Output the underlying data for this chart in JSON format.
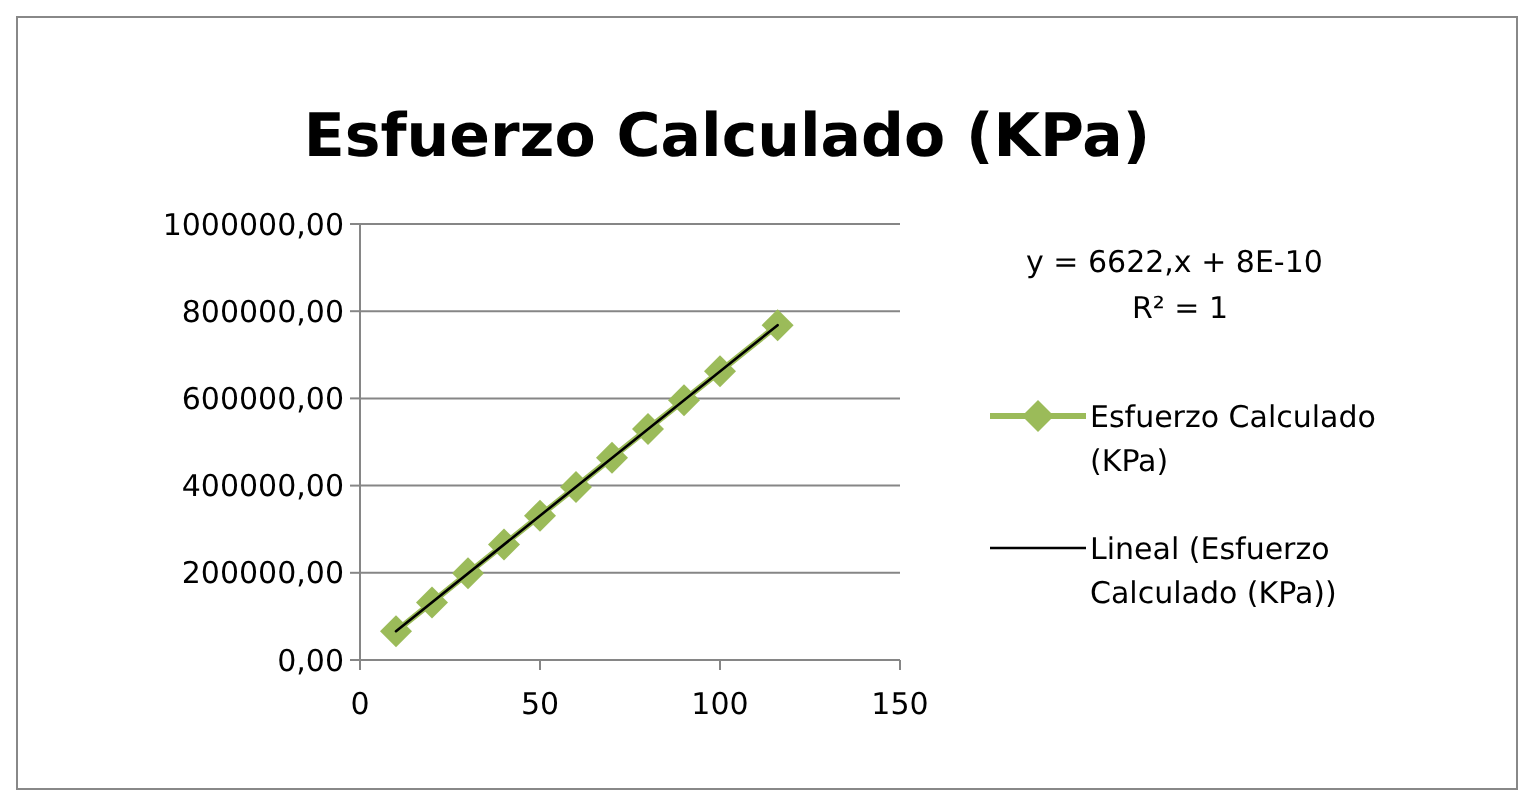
{
  "chart_data": {
    "type": "line",
    "title": "Esfuerzo Calculado (KPa)",
    "x": [
      10,
      20,
      30,
      40,
      50,
      60,
      70,
      80,
      90,
      100,
      116
    ],
    "series": [
      {
        "name": "Esfuerzo Calculado (KPa)",
        "color": "#9bbb59",
        "values": [
          66000,
          132000,
          199000,
          265000,
          331000,
          397000,
          464000,
          530000,
          596000,
          662000,
          768000
        ]
      },
      {
        "name": "Lineal (Esfuerzo Calculado (KPa))",
        "color": "#000000",
        "type": "line",
        "marker": "none",
        "x": [
          10,
          116
        ],
        "values": [
          66000,
          768000
        ]
      }
    ],
    "xlim": [
      0,
      150
    ],
    "xticks": [
      0,
      50,
      100,
      150
    ],
    "ylim": [
      0,
      1000000
    ],
    "yticks": [
      {
        "value": 0,
        "label": "0,00"
      },
      {
        "value": 200000,
        "label": "200000,00"
      },
      {
        "value": 400000,
        "label": "400000,00"
      },
      {
        "value": 600000,
        "label": "600000,00"
      },
      {
        "value": 800000,
        "label": "800000,00"
      },
      {
        "value": 1000000,
        "label": "1000000,00"
      }
    ],
    "grid": "y",
    "marker": "diamond",
    "legend": "right",
    "annotations": [
      "y = 6622,x + 8E-10",
      "R² = 1"
    ]
  }
}
